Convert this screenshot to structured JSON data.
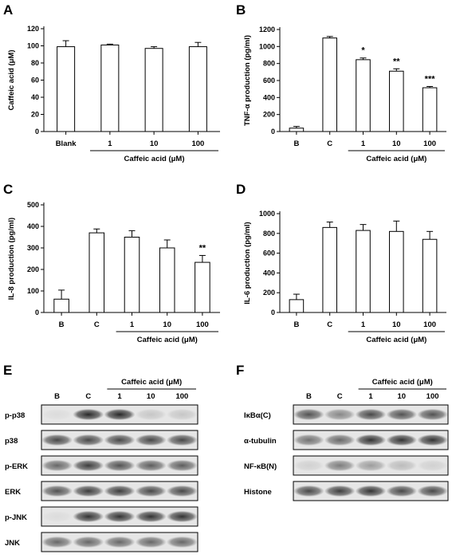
{
  "panels": {
    "A": "A",
    "B": "B",
    "C": "C",
    "D": "D",
    "E": "E",
    "F": "F"
  },
  "chart_data": [
    {
      "id": "A",
      "type": "bar",
      "ylabel": "Caffeic acid (μM)",
      "categories": [
        "Blank",
        "1",
        "10",
        "100"
      ],
      "values": [
        99,
        101,
        97,
        99
      ],
      "errors": [
        7,
        1,
        2,
        5
      ],
      "significance": [
        "",
        "",
        "",
        ""
      ],
      "yticks": [
        0,
        20,
        40,
        60,
        80,
        100,
        120
      ],
      "ylim": [
        0,
        120
      ],
      "group_label": "Caffeic acid (μM)",
      "group_start": 1
    },
    {
      "id": "B",
      "type": "bar",
      "ylabel": "TNF-α production (pg/ml)",
      "categories": [
        "B",
        "C",
        "1",
        "10",
        "100"
      ],
      "values": [
        40,
        1100,
        845,
        710,
        515
      ],
      "errors": [
        20,
        18,
        20,
        28,
        15
      ],
      "significance": [
        "",
        "",
        "*",
        "**",
        "***"
      ],
      "yticks": [
        0,
        200,
        400,
        600,
        800,
        1000,
        1200
      ],
      "ylim": [
        0,
        1200
      ],
      "group_label": "Caffeic acid (μM)",
      "group_start": 2
    },
    {
      "id": "C",
      "type": "bar",
      "ylabel": "IL-8 production (pg/ml)",
      "categories": [
        "B",
        "C",
        "1",
        "10",
        "100"
      ],
      "values": [
        62,
        370,
        350,
        300,
        233
      ],
      "errors": [
        42,
        18,
        30,
        37,
        32
      ],
      "significance": [
        "",
        "",
        "",
        "",
        "**"
      ],
      "yticks": [
        0,
        100,
        200,
        300,
        400,
        500
      ],
      "ylim": [
        0,
        500
      ],
      "group_label": "Caffeic acid (μM)",
      "group_start": 2
    },
    {
      "id": "D",
      "type": "bar",
      "ylabel": "IL-6 production (pg/ml)",
      "categories": [
        "B",
        "C",
        "1",
        "10",
        "100"
      ],
      "values": [
        130,
        860,
        830,
        820,
        740
      ],
      "errors": [
        55,
        55,
        60,
        105,
        80
      ],
      "significance": [
        "",
        "",
        "",
        "",
        ""
      ],
      "yticks": [
        0,
        200,
        400,
        600,
        800,
        1000
      ],
      "ylim": [
        0,
        1000
      ],
      "group_label": "Caffeic acid (μM)",
      "group_start": 2
    }
  ],
  "blots": {
    "E": {
      "header": "Caffeic acid (μM)",
      "lanes": [
        "B",
        "C",
        "1",
        "10",
        "100"
      ],
      "rows": [
        {
          "label": "p-p38",
          "intensity": [
            0.05,
            0.9,
            0.9,
            0.15,
            0.15
          ]
        },
        {
          "label": "p38",
          "intensity": [
            0.75,
            0.75,
            0.75,
            0.75,
            0.75
          ]
        },
        {
          "label": "p-ERK",
          "intensity": [
            0.6,
            0.8,
            0.7,
            0.65,
            0.65
          ]
        },
        {
          "label": "ERK",
          "intensity": [
            0.7,
            0.8,
            0.8,
            0.75,
            0.75
          ]
        },
        {
          "label": "p-JNK",
          "intensity": [
            0.05,
            0.85,
            0.85,
            0.85,
            0.85
          ]
        },
        {
          "label": "JNK",
          "intensity": [
            0.6,
            0.6,
            0.6,
            0.6,
            0.6
          ]
        }
      ]
    },
    "F": {
      "header": "Caffeic acid (μM)",
      "lanes": [
        "B",
        "C",
        "1",
        "10",
        "100"
      ],
      "rows": [
        {
          "label": "IκBα(C)",
          "intensity": [
            0.7,
            0.45,
            0.75,
            0.7,
            0.7
          ]
        },
        {
          "label": "α-tubulin",
          "intensity": [
            0.55,
            0.6,
            0.85,
            0.85,
            0.85
          ]
        },
        {
          "label": "NF-κB(N)",
          "intensity": [
            0.1,
            0.5,
            0.35,
            0.2,
            0.1
          ]
        },
        {
          "label": "Histone",
          "intensity": [
            0.75,
            0.8,
            0.85,
            0.75,
            0.75
          ]
        }
      ]
    }
  }
}
